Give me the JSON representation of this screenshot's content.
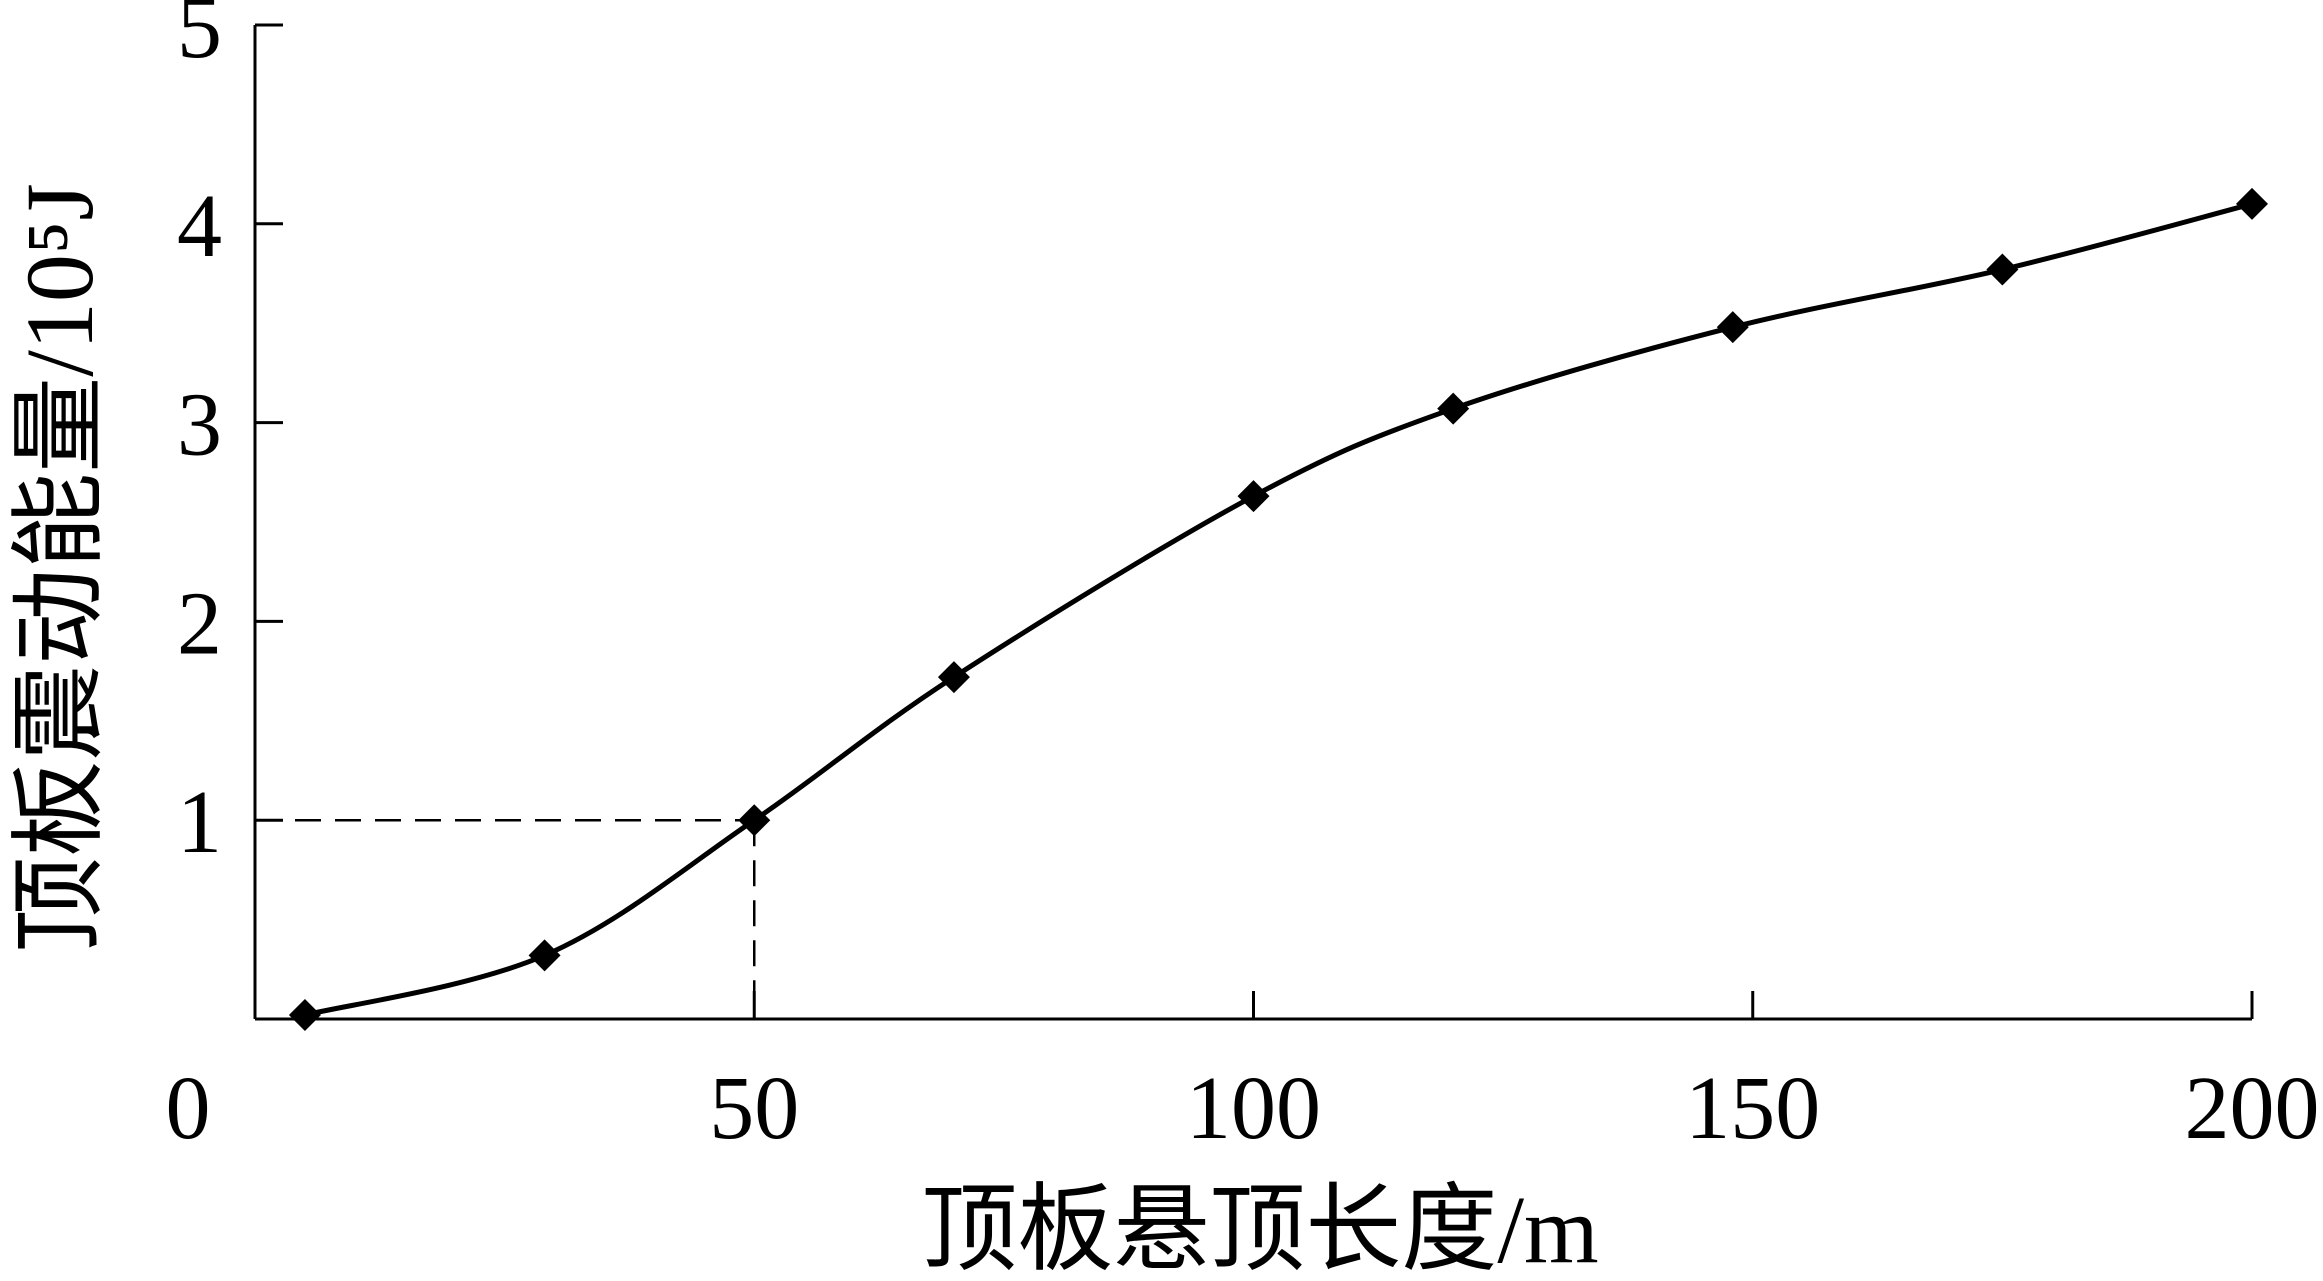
{
  "chart_data": {
    "type": "line",
    "x_label": "顶板悬顶长度/m",
    "y_label": "顶板震动能量/10⁵J",
    "x": [
      5,
      29,
      50,
      70,
      100,
      120,
      148,
      175,
      200
    ],
    "series": [
      {
        "color": "#000000",
        "values": [
          0.02,
          0.32,
          1.0,
          1.72,
          2.63,
          3.07,
          3.48,
          3.77,
          4.1
        ]
      }
    ],
    "xlim": [
      0,
      200
    ],
    "ylim": [
      0,
      5
    ],
    "xticks": [
      0,
      50,
      100,
      150,
      200
    ],
    "yticks": [
      1,
      2,
      3,
      4,
      5
    ],
    "guide": {
      "x": 50,
      "y": 1
    }
  }
}
